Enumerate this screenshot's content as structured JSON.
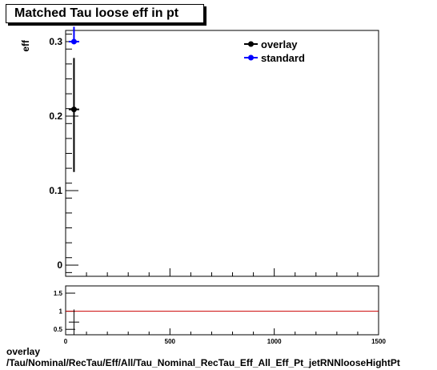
{
  "title": "Matched Tau loose eff in pt",
  "footer": {
    "line1": "overlay",
    "line2": "/Tau/Nominal/RecTau/Eff/All/Tau_Nominal_RecTau_Eff_All_Eff_Pt_jetRNNlooseHightPt"
  },
  "colors": {
    "overlay": "#000000",
    "standard": "#0000ff",
    "ratio_line": "#cc0000"
  },
  "chart_data": [
    {
      "type": "scatter",
      "panel": "main",
      "ylabel": "eff",
      "xlim": [
        0,
        1500
      ],
      "ylim": [
        -0.015,
        0.315
      ],
      "y_ticks": [
        0,
        0.1,
        0.2,
        0.3
      ],
      "y_tick_labels": [
        "0",
        "0.1",
        "0.2",
        "0.3"
      ],
      "legend_placement": "top-right",
      "grid": false,
      "series": [
        {
          "name": "overlay",
          "color": "#000000",
          "points": [
            {
              "x": 40,
              "y": 0.209,
              "xerr": 25,
              "yerr_low": 0.084,
              "yerr_high": 0.069
            }
          ]
        },
        {
          "name": "standard",
          "color": "#0000ff",
          "points": [
            {
              "x": 40,
              "y": 0.3,
              "xerr": 25,
              "yerr_low": 0.0,
              "yerr_high": 0.02
            }
          ]
        }
      ]
    },
    {
      "type": "scatter",
      "panel": "ratio",
      "xlim": [
        0,
        1500
      ],
      "ylim": [
        0.35,
        1.7
      ],
      "x_ticks": [
        0,
        500,
        1000,
        1500
      ],
      "x_tick_labels": [
        "0",
        "500",
        "1000",
        "1500"
      ],
      "y_ticks": [
        0.5,
        1,
        1.5
      ],
      "y_tick_labels": [
        "0.5",
        "1",
        "1.5"
      ],
      "reference_line": 1,
      "series": [
        {
          "name": "",
          "color": "#000000",
          "points": [
            {
              "x": 40,
              "y": 0.7,
              "xerr": 25,
              "yerr_low": 0.35,
              "yerr_high": 0.35
            }
          ]
        }
      ]
    }
  ]
}
